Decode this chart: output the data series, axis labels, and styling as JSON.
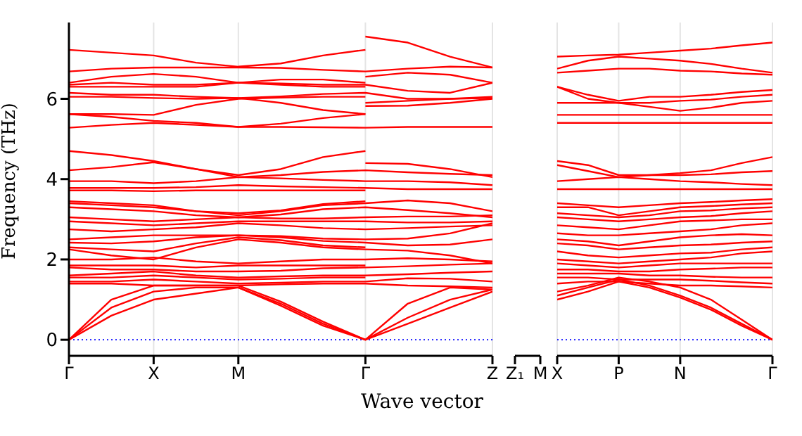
{
  "chart_data": [
    {
      "type": "line",
      "ylabel": "Frequency (THz)",
      "xlabel": "Wave vector",
      "categories": [
        "Γ",
        null,
        "X",
        null,
        "M",
        null,
        null,
        "Γ",
        null,
        null,
        "Z"
      ],
      "ylim": [
        -0.4,
        7.9
      ],
      "yticks": [
        0,
        2,
        4,
        6
      ],
      "grid": "x",
      "ref_lines": [
        {
          "axis": "y",
          "value": 0,
          "color": "#0000ff",
          "line_style": "dotted"
        }
      ],
      "series": [
        {
          "color": "#ff0000",
          "values": [
            7.22,
            7.15,
            7.08,
            6.9,
            6.8,
            6.88,
            7.08,
            7.22,
            null,
            null,
            null
          ]
        },
        {
          "color": "#ff0000",
          "values": [
            6.68,
            6.75,
            6.78,
            6.78,
            6.78,
            6.77,
            6.72,
            6.68,
            6.75,
            6.8,
            6.78
          ]
        },
        {
          "color": "#ff0000",
          "values": [
            6.4,
            6.55,
            6.62,
            6.55,
            6.4,
            6.48,
            6.48,
            6.4,
            null,
            null,
            null
          ]
        },
        {
          "color": "#ff0000",
          "values": [
            6.35,
            6.4,
            6.35,
            6.35,
            6.4,
            6.38,
            6.35,
            6.35,
            6.2,
            6.15,
            6.4
          ]
        },
        {
          "color": "#ff0000",
          "values": [
            6.3,
            6.3,
            6.3,
            6.3,
            6.4,
            6.35,
            6.3,
            6.3,
            null,
            null,
            null
          ]
        },
        {
          "color": "#ff0000",
          "values": [
            6.15,
            6.1,
            6.1,
            6.05,
            6.02,
            6.06,
            6.12,
            6.15,
            6.0,
            6.0,
            6.05
          ]
        },
        {
          "color": "#ff0000",
          "values": [
            6.05,
            6.05,
            6.02,
            6.0,
            6.02,
            5.9,
            5.72,
            5.62,
            null,
            null,
            null
          ]
        },
        {
          "color": "#ff0000",
          "values": [
            5.62,
            5.62,
            5.6,
            5.85,
            6.0,
            6.03,
            6.05,
            6.05,
            null,
            null,
            null
          ]
        },
        {
          "color": "#ff0000",
          "values": [
            5.62,
            5.55,
            5.45,
            5.4,
            5.3,
            5.38,
            5.52,
            5.62,
            null,
            null,
            null
          ]
        },
        {
          "color": "#ff0000",
          "values": [
            5.28,
            5.35,
            5.4,
            5.35,
            5.3,
            5.3,
            5.29,
            5.28,
            5.3,
            5.3,
            5.3
          ]
        },
        {
          "color": "#ff0000",
          "values": [
            4.7,
            4.6,
            4.45,
            4.25,
            4.1,
            4.25,
            4.55,
            4.7,
            null,
            null,
            null
          ]
        },
        {
          "color": "#ff0000",
          "values": [
            4.22,
            4.3,
            4.42,
            4.25,
            4.05,
            4.1,
            4.18,
            4.22,
            4.17,
            4.13,
            4.1
          ]
        },
        {
          "color": "#ff0000",
          "values": [
            3.95,
            3.95,
            3.9,
            3.95,
            4.05,
            4.02,
            3.98,
            3.95,
            3.95,
            3.92,
            3.85
          ]
        },
        {
          "color": "#ff0000",
          "values": [
            3.78,
            3.78,
            3.78,
            3.8,
            3.85,
            3.82,
            3.8,
            3.78,
            3.75,
            3.75,
            3.75
          ]
        },
        {
          "color": "#ff0000",
          "values": [
            3.72,
            3.72,
            3.7,
            3.72,
            3.72,
            3.72,
            3.72,
            3.72,
            null,
            null,
            null
          ]
        },
        {
          "color": "#ff0000",
          "values": [
            3.45,
            3.4,
            3.35,
            3.2,
            3.15,
            3.22,
            3.38,
            3.45,
            null,
            null,
            null
          ]
        },
        {
          "color": "#ff0000",
          "values": [
            3.4,
            3.35,
            3.3,
            3.2,
            3.1,
            3.2,
            3.35,
            3.4,
            3.47,
            3.4,
            3.2
          ]
        },
        {
          "color": "#ff0000",
          "values": [
            3.3,
            3.25,
            3.2,
            3.1,
            3.05,
            3.12,
            3.25,
            3.3,
            3.23,
            3.15,
            3.05
          ]
        },
        {
          "color": "#ff0000",
          "values": [
            3.05,
            3.0,
            2.95,
            3.0,
            3.05,
            3.02,
            3.02,
            3.05,
            3.07,
            3.07,
            3.1
          ]
        },
        {
          "color": "#ff0000",
          "values": [
            2.95,
            2.9,
            2.85,
            2.9,
            2.95,
            2.95,
            2.95,
            2.95,
            2.92,
            2.92,
            2.95
          ]
        },
        {
          "color": "#ff0000",
          "values": [
            2.75,
            2.7,
            2.75,
            2.8,
            2.9,
            2.85,
            2.78,
            2.75,
            2.78,
            2.82,
            2.85
          ]
        },
        {
          "color": "#ff0000",
          "values": [
            2.5,
            2.55,
            2.6,
            2.6,
            2.6,
            2.58,
            2.52,
            2.5,
            2.52,
            2.65,
            2.9
          ]
        },
        {
          "color": "#ff0000",
          "values": [
            2.42,
            2.4,
            2.45,
            2.55,
            2.6,
            2.55,
            2.46,
            2.42,
            2.35,
            2.37,
            2.5
          ]
        },
        {
          "color": "#ff0000",
          "values": [
            2.3,
            2.25,
            2.2,
            2.4,
            2.55,
            2.48,
            2.35,
            2.3,
            null,
            null,
            null
          ]
        },
        {
          "color": "#ff0000",
          "values": [
            2.25,
            2.1,
            2.0,
            2.3,
            2.5,
            2.42,
            2.3,
            2.25,
            2.22,
            2.1,
            1.9
          ]
        },
        {
          "color": "#ff0000",
          "values": [
            2.0,
            2.0,
            2.05,
            1.95,
            1.9,
            1.95,
            2.0,
            2.0,
            2.03,
            2.0,
            1.95
          ]
        },
        {
          "color": "#ff0000",
          "values": [
            1.85,
            1.85,
            1.85,
            1.8,
            1.85,
            1.85,
            1.85,
            1.85,
            null,
            null,
            null
          ]
        },
        {
          "color": "#ff0000",
          "values": [
            1.8,
            1.75,
            1.75,
            1.7,
            1.7,
            1.72,
            1.78,
            1.8,
            1.83,
            1.87,
            1.9
          ]
        },
        {
          "color": "#ff0000",
          "values": [
            1.6,
            1.65,
            1.7,
            1.6,
            1.55,
            1.58,
            1.6,
            1.6,
            1.63,
            1.67,
            1.7
          ]
        },
        {
          "color": "#ff0000",
          "values": [
            1.55,
            1.55,
            1.6,
            1.55,
            1.5,
            1.52,
            1.55,
            1.55,
            null,
            null,
            null
          ]
        },
        {
          "color": "#ff0000",
          "values": [
            1.45,
            1.45,
            1.5,
            1.45,
            1.4,
            1.42,
            1.45,
            1.45,
            1.53,
            1.52,
            1.45
          ]
        },
        {
          "color": "#ff0000",
          "values": [
            1.4,
            1.4,
            1.35,
            1.35,
            1.35,
            1.38,
            1.4,
            1.4,
            1.35,
            1.33,
            1.3
          ]
        },
        {
          "color": "#ff0000",
          "values": [
            0,
            1.0,
            1.35,
            1.35,
            1.35,
            0.95,
            0.45,
            0,
            0.9,
            1.3,
            1.25
          ]
        },
        {
          "color": "#ff0000",
          "values": [
            0,
            0.8,
            1.2,
            1.3,
            1.3,
            0.9,
            0.4,
            0,
            0.55,
            1.0,
            1.25
          ]
        },
        {
          "color": "#ff0000",
          "values": [
            0,
            0.6,
            1.0,
            1.15,
            1.3,
            0.85,
            0.35,
            0,
            0.4,
            0.8,
            1.2
          ]
        },
        {
          "color": "#ff0000",
          "values": [
            null,
            null,
            null,
            null,
            null,
            null,
            null,
            7.55,
            7.4,
            7.05,
            6.78
          ]
        },
        {
          "color": "#ff0000",
          "values": [
            null,
            null,
            null,
            null,
            null,
            null,
            null,
            6.55,
            6.65,
            6.6,
            6.4
          ]
        },
        {
          "color": "#ff0000",
          "values": [
            null,
            null,
            null,
            null,
            null,
            null,
            null,
            5.9,
            5.95,
            6.0,
            6.02
          ]
        },
        {
          "color": "#ff0000",
          "values": [
            null,
            null,
            null,
            null,
            null,
            null,
            null,
            5.82,
            5.83,
            5.9,
            6.0
          ]
        },
        {
          "color": "#ff0000",
          "values": [
            null,
            null,
            null,
            null,
            null,
            null,
            null,
            4.4,
            4.38,
            4.25,
            4.05
          ]
        }
      ]
    },
    {
      "type": "other",
      "categories": [
        "Z₁",
        "M"
      ]
    },
    {
      "type": "line",
      "categories": [
        "X",
        null,
        "P",
        null,
        "N",
        null,
        null,
        "Γ"
      ],
      "ylim": [
        -0.4,
        7.9
      ],
      "yticks": [
        0,
        2,
        4,
        6
      ],
      "tick_labels": "x",
      "grid": "x",
      "ref_lines": [
        {
          "axis": "y",
          "value": 0,
          "color": "#0000ff",
          "line_style": "dotted"
        }
      ],
      "series": [
        {
          "color": "#ff0000",
          "values": [
            7.05,
            7.08,
            7.1,
            7.15,
            7.2,
            7.25,
            7.33,
            7.4
          ]
        },
        {
          "color": "#ff0000",
          "values": [
            6.75,
            6.95,
            7.05,
            7.0,
            6.95,
            6.87,
            6.75,
            6.65
          ]
        },
        {
          "color": "#ff0000",
          "values": [
            6.65,
            6.7,
            6.75,
            6.75,
            6.7,
            6.68,
            6.63,
            6.6
          ]
        },
        {
          "color": "#ff0000",
          "values": [
            6.3,
            6.1,
            5.95,
            6.05,
            6.05,
            6.1,
            6.17,
            6.22
          ]
        },
        {
          "color": "#ff0000",
          "values": [
            6.3,
            6.0,
            5.9,
            5.9,
            5.95,
            5.98,
            6.05,
            6.1
          ]
        },
        {
          "color": "#ff0000",
          "values": [
            5.9,
            5.9,
            5.9,
            5.8,
            5.7,
            5.78,
            5.9,
            5.95
          ]
        },
        {
          "color": "#ff0000",
          "values": [
            5.6,
            5.6,
            5.6,
            5.6,
            5.6,
            5.6,
            5.6,
            5.6
          ]
        },
        {
          "color": "#ff0000",
          "values": [
            5.4,
            5.4,
            5.4,
            5.4,
            5.4,
            5.4,
            5.4,
            5.4
          ]
        },
        {
          "color": "#ff0000",
          "values": [
            4.45,
            4.35,
            4.1,
            4.1,
            4.15,
            4.22,
            4.4,
            4.55
          ]
        },
        {
          "color": "#ff0000",
          "values": [
            4.35,
            4.2,
            4.05,
            4.1,
            4.1,
            4.12,
            4.17,
            4.2
          ]
        },
        {
          "color": "#ff0000",
          "values": [
            3.95,
            4.0,
            4.05,
            4.0,
            3.95,
            3.92,
            3.88,
            3.85
          ]
        },
        {
          "color": "#ff0000",
          "values": [
            3.75,
            3.75,
            3.75,
            3.75,
            3.75,
            3.75,
            3.75,
            3.75
          ]
        },
        {
          "color": "#ff0000",
          "values": [
            3.4,
            3.35,
            3.3,
            3.35,
            3.4,
            3.43,
            3.47,
            3.5
          ]
        },
        {
          "color": "#ff0000",
          "values": [
            3.3,
            3.3,
            3.1,
            3.2,
            3.3,
            3.33,
            3.37,
            3.4
          ]
        },
        {
          "color": "#ff0000",
          "values": [
            3.15,
            3.1,
            3.05,
            3.1,
            3.2,
            3.22,
            3.27,
            3.3
          ]
        },
        {
          "color": "#ff0000",
          "values": [
            3.05,
            3.0,
            2.95,
            3.0,
            3.05,
            3.08,
            3.15,
            3.2
          ]
        },
        {
          "color": "#ff0000",
          "values": [
            2.85,
            2.8,
            2.75,
            2.85,
            2.95,
            2.97,
            3.0,
            3.0
          ]
        },
        {
          "color": "#ff0000",
          "values": [
            2.65,
            2.6,
            2.6,
            2.65,
            2.7,
            2.75,
            2.85,
            2.9
          ]
        },
        {
          "color": "#ff0000",
          "values": [
            2.5,
            2.45,
            2.35,
            2.45,
            2.55,
            2.6,
            2.63,
            2.6
          ]
        },
        {
          "color": "#ff0000",
          "values": [
            2.4,
            2.35,
            2.25,
            2.3,
            2.35,
            2.37,
            2.42,
            2.45
          ]
        },
        {
          "color": "#ff0000",
          "values": [
            2.2,
            2.1,
            2.05,
            2.1,
            2.15,
            2.17,
            2.25,
            2.3
          ]
        },
        {
          "color": "#ff0000",
          "values": [
            2.0,
            1.95,
            1.9,
            1.95,
            2.0,
            2.05,
            2.15,
            2.2
          ]
        },
        {
          "color": "#ff0000",
          "values": [
            1.9,
            1.85,
            1.8,
            1.85,
            1.9,
            1.9,
            1.9,
            1.9
          ]
        },
        {
          "color": "#ff0000",
          "values": [
            1.75,
            1.75,
            1.7,
            1.7,
            1.75,
            1.77,
            1.8,
            1.8
          ]
        },
        {
          "color": "#ff0000",
          "values": [
            1.65,
            1.65,
            1.65,
            1.6,
            1.6,
            1.57,
            1.55,
            1.55
          ]
        },
        {
          "color": "#ff0000",
          "values": [
            1.55,
            1.55,
            1.5,
            1.5,
            1.5,
            1.47,
            1.43,
            1.4
          ]
        },
        {
          "color": "#ff0000",
          "values": [
            1.4,
            1.45,
            1.45,
            1.4,
            1.35,
            1.35,
            1.33,
            1.3
          ]
        },
        {
          "color": "#ff0000",
          "values": [
            1.2,
            1.35,
            1.55,
            1.45,
            1.3,
            1.0,
            0.5,
            0
          ]
        },
        {
          "color": "#ff0000",
          "values": [
            1.1,
            1.3,
            1.5,
            1.35,
            1.1,
            0.8,
            0.4,
            0
          ]
        },
        {
          "color": "#ff0000",
          "values": [
            1.0,
            1.2,
            1.45,
            1.3,
            1.05,
            0.75,
            0.35,
            0
          ]
        }
      ]
    }
  ]
}
